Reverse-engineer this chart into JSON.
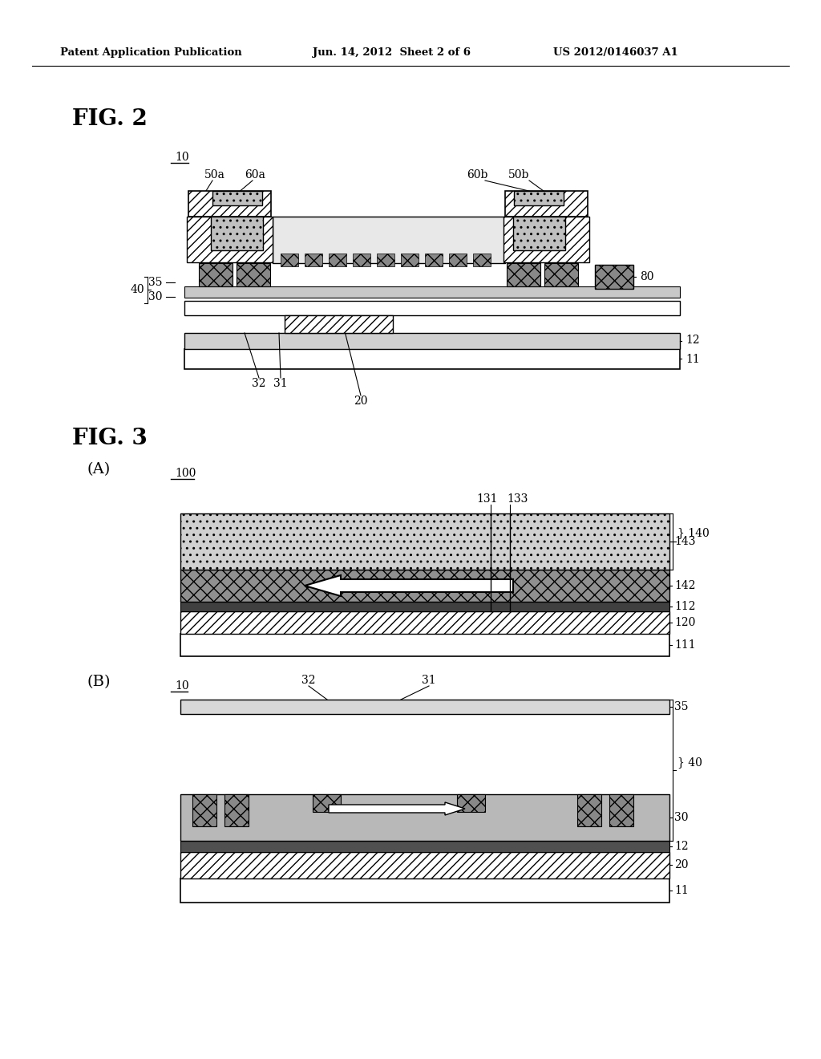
{
  "header_left": "Patent Application Publication",
  "header_center": "Jun. 14, 2012  Sheet 2 of 6",
  "header_right": "US 2012/0146037 A1",
  "bg_color": "#ffffff"
}
